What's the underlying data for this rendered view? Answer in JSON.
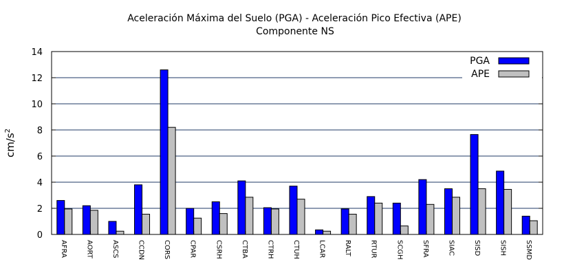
{
  "chart_data": {
    "type": "bar",
    "title_line1": "Aceleración Máxima del Suelo (PGA) -  Aceleración Pico Efectiva (APE)",
    "title_line2": "Componente NS",
    "ylabel_base": "cm/s",
    "ylabel_exp": "2",
    "xlabel": "",
    "ylim": [
      0,
      14
    ],
    "yticks": [
      0,
      2,
      4,
      6,
      8,
      10,
      12,
      14
    ],
    "grid": true,
    "legend_position": "top-right",
    "categories": [
      "AFRA",
      "AORT",
      "ASCS",
      "CCDN",
      "CORS",
      "CPAR",
      "CSRH",
      "CTBA",
      "CTRH",
      "CTUH",
      "LCAR",
      "RALT",
      "RTUR",
      "SCGH",
      "SFRA",
      "SIAC",
      "SISD",
      "SISH",
      "SSMD"
    ],
    "series": [
      {
        "name": "PGA",
        "color": "#0000ff",
        "values": [
          2.6,
          2.2,
          1.0,
          3.8,
          12.6,
          2.0,
          2.5,
          4.1,
          2.05,
          3.7,
          0.35,
          1.95,
          2.9,
          2.4,
          4.2,
          3.5,
          7.65,
          4.85,
          1.4
        ]
      },
      {
        "name": "APE",
        "color": "#c0c0c0",
        "values": [
          1.95,
          1.85,
          0.25,
          1.55,
          8.2,
          1.25,
          1.6,
          2.85,
          1.95,
          2.7,
          0.25,
          1.55,
          2.4,
          0.65,
          2.3,
          2.85,
          3.5,
          3.45,
          1.05
        ]
      }
    ]
  }
}
